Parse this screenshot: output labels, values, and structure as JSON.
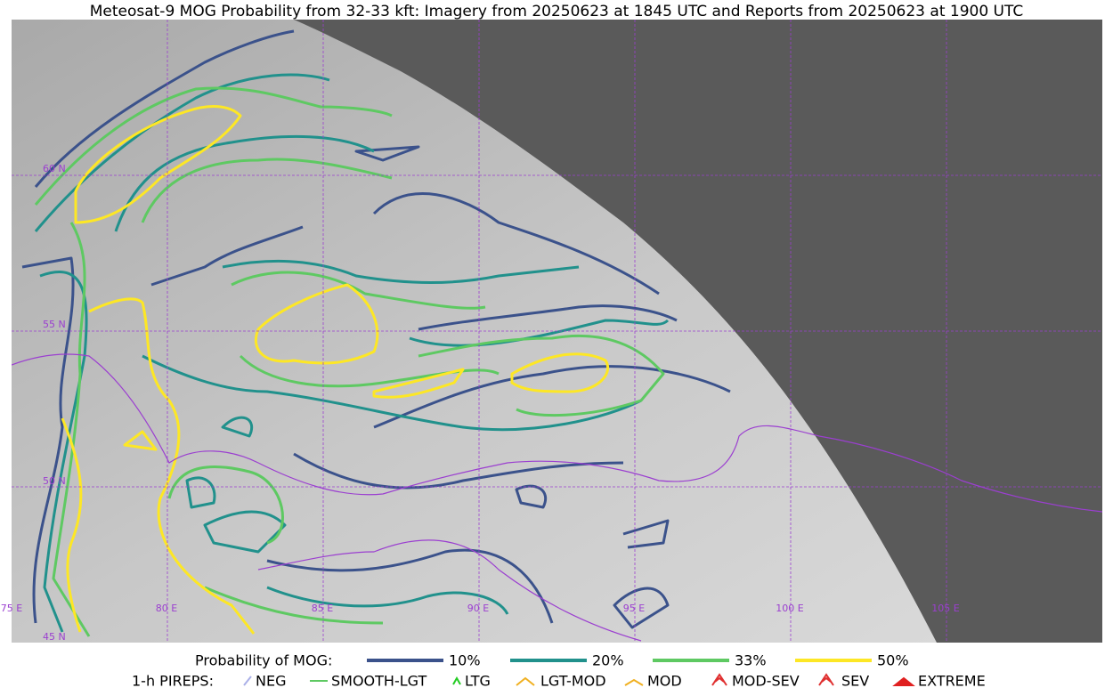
{
  "title": "Meteosat-9 MOG Probability from 32-33 kft: Imagery from 20250623 at 1845 UTC and Reports from 20250623 at 1900 UTC",
  "grid": {
    "lat_labels": [
      "60 N",
      "55 N",
      "50 N",
      "45 N"
    ],
    "lon_labels": [
      "75 E",
      "80 E",
      "85 E",
      "90 E",
      "95 E",
      "100 E",
      "105 E"
    ]
  },
  "legend": {
    "probability_label": "Probability of MOG:",
    "probability_items": [
      "10%",
      "20%",
      "33%",
      "50%"
    ],
    "pirep_label": "1-h PIREPS:",
    "pirep_items": [
      "NEG",
      "SMOOTH-LGT",
      "LTG",
      "LGT-MOD",
      "MOD",
      "MOD-SEV",
      "SEV",
      "EXTREME"
    ]
  }
}
